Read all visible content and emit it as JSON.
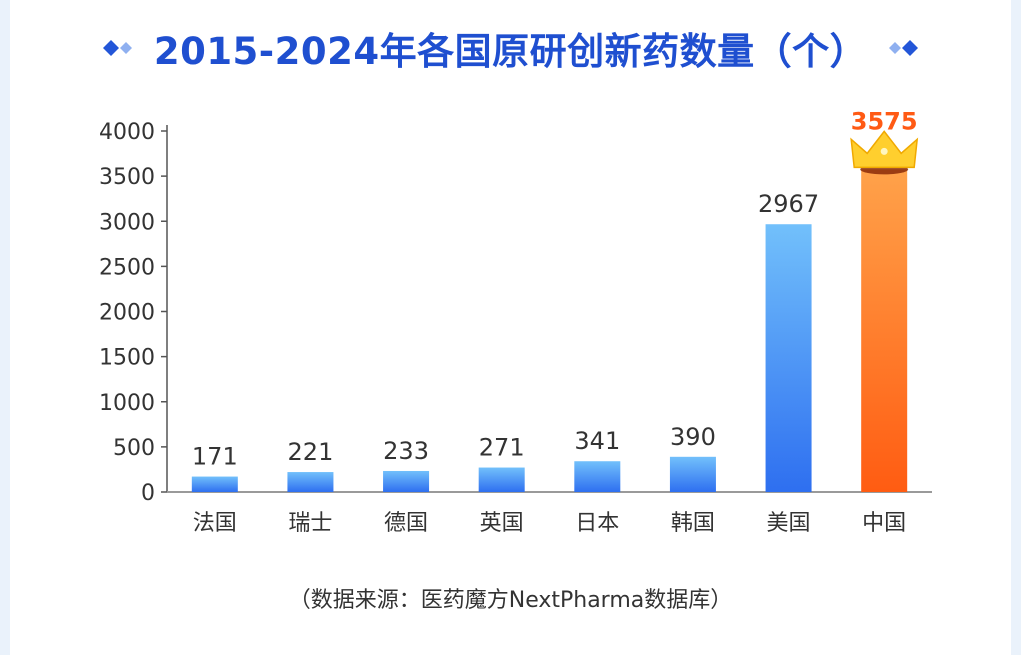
{
  "title": "2015-2024年各国原研创新药数量（个）",
  "source": "（数据来源：医药魔方NextPharma数据库）",
  "icons": {
    "left": "double-diamond-icon",
    "right": "double-diamond-icon",
    "winner": "crown-icon"
  },
  "colors": {
    "title": "#1f4fd0",
    "bar_blue_top": "#72c0fb",
    "bar_blue_bottom": "#2e6ff0",
    "bar_orange_top": "#ffa24a",
    "bar_orange_bottom": "#ff5c12",
    "highlight_label": "#ff5a14",
    "crown": "#ffcf2e"
  },
  "chart_data": {
    "type": "bar",
    "title": "2015-2024年各国原研创新药数量（个）",
    "categories": [
      "法国",
      "瑞士",
      "德国",
      "英国",
      "日本",
      "韩国",
      "美国",
      "中国"
    ],
    "values": [
      171,
      221,
      233,
      271,
      341,
      390,
      2967,
      3575
    ],
    "value_labels": [
      "171",
      "221",
      "233",
      "271",
      "341",
      "390",
      "2967",
      "3575"
    ],
    "highlight_index": 7,
    "ylim": [
      0,
      4000
    ],
    "yticks": [
      0,
      500,
      1000,
      1500,
      2000,
      2500,
      3000,
      3500,
      4000
    ],
    "ytick_labels": [
      "0",
      "500",
      "1000",
      "1500",
      "2000",
      "2500",
      "3000",
      "3500",
      "4000"
    ],
    "grid": false,
    "legend": "none"
  }
}
